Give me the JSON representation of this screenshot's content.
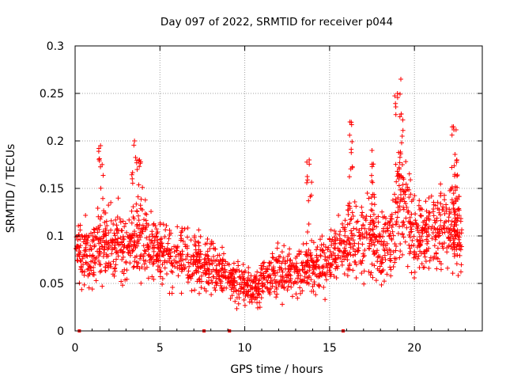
{
  "chart_data": {
    "type": "scatter",
    "title": "Day 097 of 2022, SRMTID for receiver p044",
    "xlabel": "GPS time / hours",
    "ylabel": "SRMTID / TECUs",
    "xlim": [
      0,
      24
    ],
    "ylim": [
      0,
      0.3
    ],
    "x_ticks": [
      0,
      5,
      10,
      15,
      20
    ],
    "x_tick_labels": [
      "0",
      "5",
      "10",
      "15",
      "20"
    ],
    "y_ticks": [
      0,
      0.05,
      0.1,
      0.15,
      0.2,
      0.25,
      0.3
    ],
    "y_tick_labels": [
      "0",
      "0.05",
      "0.1",
      "0.15",
      "0.2",
      "0.25",
      "0.3"
    ],
    "grid": true,
    "marker": "+",
    "color": "#ff0000",
    "series": [
      {
        "name": "SRMTID",
        "trend": [
          [
            0.0,
            0.085
          ],
          [
            1.0,
            0.08
          ],
          [
            2.0,
            0.095
          ],
          [
            3.0,
            0.09
          ],
          [
            4.0,
            0.095
          ],
          [
            5.0,
            0.085
          ],
          [
            6.0,
            0.078
          ],
          [
            7.0,
            0.075
          ],
          [
            8.0,
            0.07
          ],
          [
            9.0,
            0.055
          ],
          [
            10.0,
            0.05
          ],
          [
            10.5,
            0.045
          ],
          [
            11.0,
            0.05
          ],
          [
            12.0,
            0.065
          ],
          [
            13.0,
            0.06
          ],
          [
            14.0,
            0.065
          ],
          [
            15.0,
            0.075
          ],
          [
            16.0,
            0.09
          ],
          [
            17.0,
            0.1
          ],
          [
            18.0,
            0.09
          ],
          [
            18.8,
            0.105
          ],
          [
            19.3,
            0.14
          ],
          [
            20.0,
            0.1
          ],
          [
            21.0,
            0.1
          ],
          [
            22.0,
            0.11
          ],
          [
            23.0,
            0.1
          ]
        ],
        "peaks": [
          [
            1.5,
            0.195
          ],
          [
            3.5,
            0.2
          ],
          [
            3.8,
            0.18
          ],
          [
            13.8,
            0.18
          ],
          [
            16.2,
            0.22
          ],
          [
            17.5,
            0.19
          ],
          [
            19.2,
            0.265
          ],
          [
            19.0,
            0.25
          ],
          [
            22.3,
            0.215
          ],
          [
            22.5,
            0.18
          ]
        ]
      }
    ],
    "zero_markers_x": [
      0.25,
      7.6,
      9.1,
      15.8
    ]
  }
}
